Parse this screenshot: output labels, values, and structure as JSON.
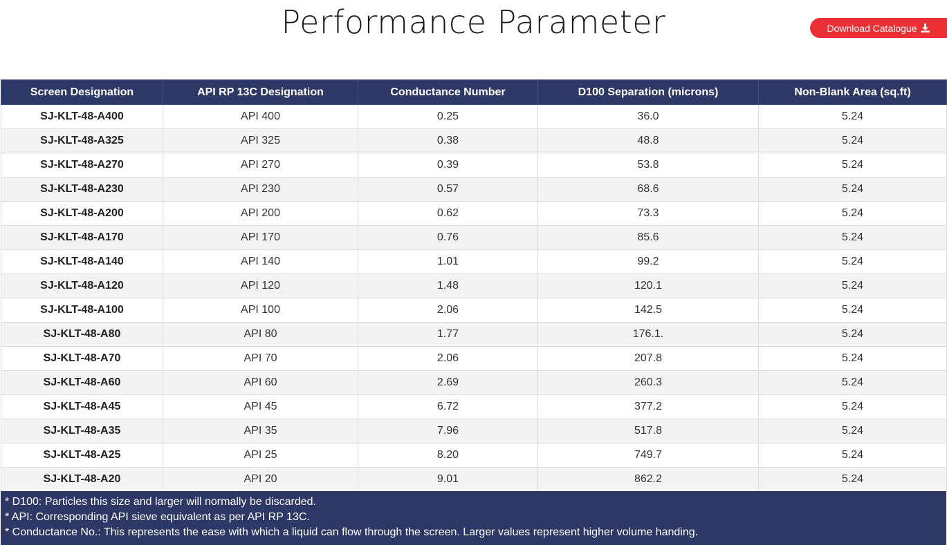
{
  "page": {
    "title": "Performance Parameter"
  },
  "download": {
    "label": "Download Catalogue",
    "icon": "download-icon",
    "color": "#ec2f35"
  },
  "table": {
    "header_color": "#2d3867",
    "columns": [
      "Screen Designation",
      "API RP 13C Designation",
      "Conductance Number",
      "D100 Separation (microns)",
      "Non-Blank Area (sq.ft)"
    ],
    "rows": [
      [
        "SJ-KLT-48-A400",
        "API 400",
        "0.25",
        "36.0",
        "5.24"
      ],
      [
        "SJ-KLT-48-A325",
        "API 325",
        "0.38",
        "48.8",
        "5.24"
      ],
      [
        "SJ-KLT-48-A270",
        "API 270",
        "0.39",
        "53.8",
        "5.24"
      ],
      [
        "SJ-KLT-48-A230",
        "API 230",
        "0.57",
        "68.6",
        "5.24"
      ],
      [
        "SJ-KLT-48-A200",
        "API 200",
        "0.62",
        "73.3",
        "5.24"
      ],
      [
        "SJ-KLT-48-A170",
        "API 170",
        "0.76",
        "85.6",
        "5.24"
      ],
      [
        "SJ-KLT-48-A140",
        "API 140",
        "1.01",
        "99.2",
        "5.24"
      ],
      [
        "SJ-KLT-48-A120",
        "API 120",
        "1.48",
        "120.1",
        "5.24"
      ],
      [
        "SJ-KLT-48-A100",
        "API 100",
        "2.06",
        "142.5",
        "5.24"
      ],
      [
        "SJ-KLT-48-A80",
        "API 80",
        "1.77",
        "176.1.",
        "5.24"
      ],
      [
        "SJ-KLT-48-A70",
        "API 70",
        "2.06",
        "207.8",
        "5.24"
      ],
      [
        "SJ-KLT-48-A60",
        "API 60",
        "2.69",
        "260.3",
        "5.24"
      ],
      [
        "SJ-KLT-48-A45",
        "API 45",
        "6.72",
        "377.2",
        "5.24"
      ],
      [
        "SJ-KLT-48-A35",
        "API 35",
        "7.96",
        "517.8",
        "5.24"
      ],
      [
        "SJ-KLT-48-A25",
        "API 25",
        "8.20",
        "749.7",
        "5.24"
      ],
      [
        "SJ-KLT-48-A20",
        "API 20",
        "9.01",
        "862.2",
        "5.24"
      ]
    ]
  },
  "notes": [
    "* D100: Particles this size and larger will normally be discarded.",
    "* API: Corresponding API sieve equivalent as per API RP 13C.",
    "* Conductance No.: This represents the ease with which a liquid can flow through the screen. Larger values represent higher volume handing."
  ]
}
